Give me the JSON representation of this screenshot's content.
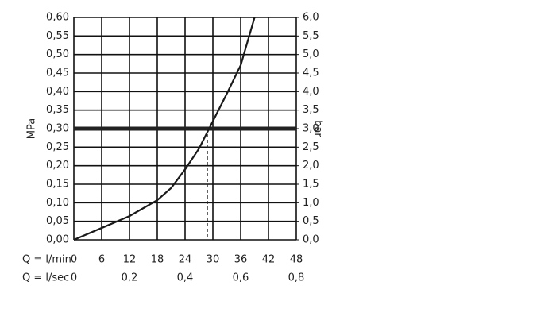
{
  "chart_data": {
    "type": "line",
    "x": [
      0,
      6,
      12,
      18,
      21,
      24,
      27,
      30,
      33,
      36,
      39
    ],
    "series": [
      {
        "color": "#1a1a1a",
        "values": [
          0,
          0.032,
          0.064,
          0.107,
          0.14,
          0.19,
          0.246,
          0.32,
          0.394,
          0.471,
          0.6
        ]
      }
    ],
    "xlim": [
      0,
      48
    ],
    "xticks": [
      0,
      6,
      12,
      18,
      24,
      30,
      36,
      42,
      48
    ],
    "x_label": "Q = l/min",
    "x2lim": [
      0,
      0.8
    ],
    "x2ticks": [
      0,
      {
        "value": 0.2,
        "label": "0,2"
      },
      {
        "value": 0.4,
        "label": "0,4"
      },
      {
        "value": 0.6,
        "label": "0,6"
      },
      {
        "value": 0.8,
        "label": "0,8"
      }
    ],
    "x2_label": "Q = l/sec",
    "ylim": [
      0,
      0.6
    ],
    "yticks": [
      {
        "value": 0,
        "label": "0,00"
      },
      {
        "value": 0.05,
        "label": "0,05"
      },
      {
        "value": 0.1,
        "label": "0,10"
      },
      {
        "value": 0.15,
        "label": "0,15"
      },
      {
        "value": 0.2,
        "label": "0,20"
      },
      {
        "value": 0.25,
        "label": "0,25"
      },
      {
        "value": 0.3,
        "label": "0,30"
      },
      {
        "value": 0.35,
        "label": "0,35"
      },
      {
        "value": 0.4,
        "label": "0,40"
      },
      {
        "value": 0.45,
        "label": "0,45"
      },
      {
        "value": 0.5,
        "label": "0,50"
      },
      {
        "value": 0.55,
        "label": "0,55"
      },
      {
        "value": 0.6,
        "label": "0,60"
      }
    ],
    "y_label": "MPa",
    "y2lim": [
      0,
      6
    ],
    "y2ticks": [
      {
        "value": 0,
        "label": "0,0"
      },
      {
        "value": 0.5,
        "label": "0,5"
      },
      {
        "value": 1,
        "label": "1,0"
      },
      {
        "value": 1.5,
        "label": "1,5"
      },
      {
        "value": 2,
        "label": "2,0"
      },
      {
        "value": 2.5,
        "label": "2,5"
      },
      {
        "value": 3,
        "label": "3,0"
      },
      {
        "value": 3.5,
        "label": "3,5"
      },
      {
        "value": 4,
        "label": "4,0"
      },
      {
        "value": 4.5,
        "label": "4,5"
      },
      {
        "value": 5,
        "label": "5,0"
      },
      {
        "value": 5.5,
        "label": "5,5"
      },
      {
        "value": 6,
        "label": "6,0"
      }
    ],
    "y2_label": "bar",
    "reference": {
      "y": 0.3,
      "x": 28.8
    },
    "grid": true
  }
}
